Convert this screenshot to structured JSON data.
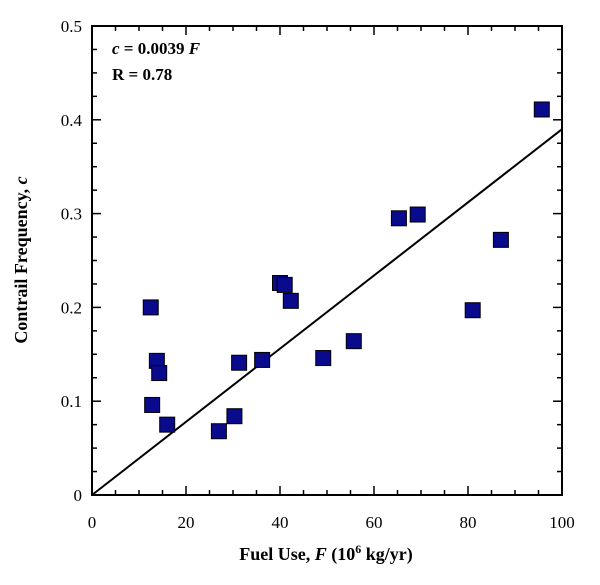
{
  "chart_data": {
    "type": "scatter",
    "xlabel": {
      "prefix": "Fuel Use, ",
      "var": "F",
      "mid": " (10",
      "sup": "6",
      "suffix": " kg/yr)"
    },
    "ylabel": {
      "prefix": "Contrail Frequency, ",
      "var": "c"
    },
    "xlim": [
      0,
      100
    ],
    "ylim": [
      0,
      0.5
    ],
    "x_ticks": [
      "0",
      "20",
      "40",
      "60",
      "80",
      "100"
    ],
    "y_ticks": [
      "0",
      "0.1",
      "0.2",
      "0.3",
      "0.4",
      "0.5"
    ],
    "grid": false,
    "marker_color": "#0a0a8c",
    "annotations": {
      "fit": {
        "var": "c",
        "eq": " = 0.0039 ",
        "var2": "F"
      },
      "r": "R = 0.78"
    },
    "fit_line": {
      "slope": 0.0039,
      "intercept": 0
    },
    "points": [
      {
        "x": 12.5,
        "y": 0.2
      },
      {
        "x": 12.8,
        "y": 0.096
      },
      {
        "x": 13.8,
        "y": 0.143
      },
      {
        "x": 14.3,
        "y": 0.13
      },
      {
        "x": 16.0,
        "y": 0.075
      },
      {
        "x": 27.0,
        "y": 0.068
      },
      {
        "x": 30.3,
        "y": 0.084
      },
      {
        "x": 31.3,
        "y": 0.141
      },
      {
        "x": 36.2,
        "y": 0.144
      },
      {
        "x": 40.0,
        "y": 0.226
      },
      {
        "x": 41.0,
        "y": 0.224
      },
      {
        "x": 42.3,
        "y": 0.207
      },
      {
        "x": 49.2,
        "y": 0.146
      },
      {
        "x": 55.7,
        "y": 0.164
      },
      {
        "x": 65.3,
        "y": 0.295
      },
      {
        "x": 69.3,
        "y": 0.299
      },
      {
        "x": 81.0,
        "y": 0.197
      },
      {
        "x": 87.0,
        "y": 0.272
      },
      {
        "x": 95.7,
        "y": 0.411
      }
    ]
  }
}
